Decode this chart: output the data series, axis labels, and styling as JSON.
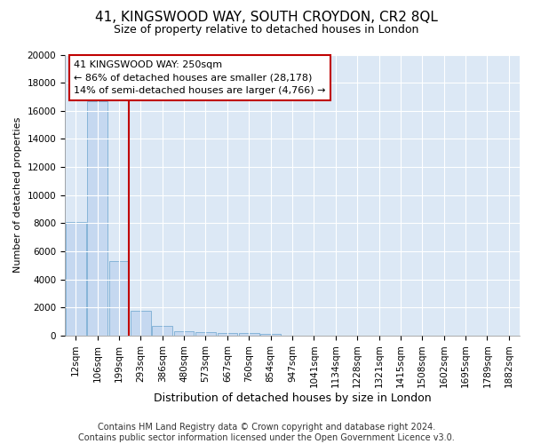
{
  "title1": "41, KINGSWOOD WAY, SOUTH CROYDON, CR2 8QL",
  "title2": "Size of property relative to detached houses in London",
  "xlabel": "Distribution of detached houses by size in London",
  "ylabel": "Number of detached properties",
  "categories": [
    "12sqm",
    "106sqm",
    "199sqm",
    "293sqm",
    "386sqm",
    "480sqm",
    "573sqm",
    "667sqm",
    "760sqm",
    "854sqm",
    "947sqm",
    "1041sqm",
    "1134sqm",
    "1228sqm",
    "1321sqm",
    "1415sqm",
    "1508sqm",
    "1602sqm",
    "1695sqm",
    "1789sqm",
    "1882sqm"
  ],
  "values": [
    8100,
    16700,
    5300,
    1750,
    700,
    340,
    265,
    195,
    170,
    140,
    0,
    0,
    0,
    0,
    0,
    0,
    0,
    0,
    0,
    0,
    0
  ],
  "bar_color": "#c5d8f0",
  "bar_edge_color": "#7aadd4",
  "vline_color": "#c00000",
  "annotation_text": "41 KINGSWOOD WAY: 250sqm\n← 86% of detached houses are smaller (28,178)\n14% of semi-detached houses are larger (4,766) →",
  "annotation_box_edgecolor": "#c00000",
  "ylim": [
    0,
    20000
  ],
  "yticks": [
    0,
    2000,
    4000,
    6000,
    8000,
    10000,
    12000,
    14000,
    16000,
    18000,
    20000
  ],
  "footnote": "Contains HM Land Registry data © Crown copyright and database right 2024.\nContains public sector information licensed under the Open Government Licence v3.0.",
  "bg_color": "#dce8f5",
  "grid_color": "#ffffff",
  "title1_fontsize": 11,
  "title2_fontsize": 9,
  "xlabel_fontsize": 9,
  "ylabel_fontsize": 8,
  "tick_fontsize": 7.5,
  "footnote_fontsize": 7
}
